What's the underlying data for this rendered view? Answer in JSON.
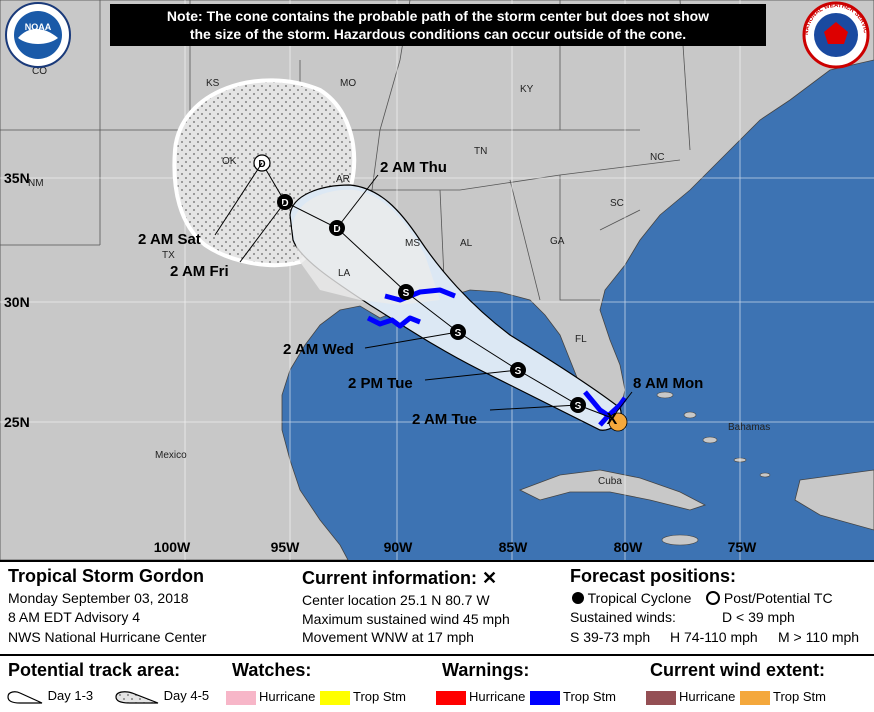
{
  "note": {
    "line1": "Note: The cone contains the probable path of the storm center but does not show",
    "line2": "the size of the storm. Hazardous conditions can occur outside of the cone."
  },
  "logos": {
    "left": "NOAA",
    "right": "NATIONAL WEATHER SERVICE"
  },
  "map_labels": {
    "lat": [
      "35N",
      "30N",
      "25N"
    ],
    "lon": [
      "100W",
      "95W",
      "90W",
      "85W",
      "80W",
      "75W"
    ],
    "states": [
      "CO",
      "KS",
      "MO",
      "KY",
      "TN",
      "OK",
      "AR",
      "NC",
      "SC",
      "AL",
      "GA",
      "MS",
      "LA",
      "TX",
      "FL",
      "NM"
    ],
    "countries": [
      "Mexico",
      "Cuba",
      "Bahamas"
    ]
  },
  "forecast_points": [
    {
      "time": "8 AM Mon",
      "symbol": "X"
    },
    {
      "time": "2 AM Tue",
      "symbol": "S"
    },
    {
      "time": "2 PM Tue",
      "symbol": "S"
    },
    {
      "time": "2 AM Wed",
      "symbol": "S"
    },
    {
      "time": "2 AM Thu",
      "symbol": "D"
    },
    {
      "time": "2 AM Fri",
      "symbol": "D"
    },
    {
      "time": "2 AM Sat",
      "symbol": "D"
    }
  ],
  "storm": {
    "name": "Tropical Storm Gordon",
    "date": "Monday September 03, 2018",
    "advisory": "8 AM EDT Advisory 4",
    "center": "NWS National Hurricane Center"
  },
  "current": {
    "title": "Current information:",
    "symbol": "✕",
    "location": "Center location 25.1 N 80.7 W",
    "wind": "Maximum sustained wind 45 mph",
    "movement": "Movement WNW at 17 mph"
  },
  "forecast": {
    "title": "Forecast positions:",
    "tc": "Tropical Cyclone",
    "ptc": "Post/Potential TC",
    "sustained": "Sustained winds:",
    "d": "D < 39 mph",
    "s": "S 39-73 mph",
    "h": "H 74-110 mph",
    "m": "M > 110 mph"
  },
  "legend": {
    "track_title": "Potential track area:",
    "day13": "Day 1-3",
    "day45": "Day 4-5",
    "watches_title": "Watches:",
    "warnings_title": "Warnings:",
    "wind_title": "Current wind extent:",
    "hurricane": "Hurricane",
    "tropstm": "Trop Stm",
    "colors": {
      "watch_hurricane": "#f7b6c8",
      "watch_tropstm": "#ffff00",
      "warn_hurricane": "#ff0000",
      "warn_tropstm": "#0000ff",
      "wind_hurricane": "#944f54",
      "wind_tropstm": "#f4a83c"
    }
  },
  "colors": {
    "ocean": "#3d73b3",
    "land": "#c8c8c8",
    "cone": "#dce8f4",
    "cone_45": "#e6e6e6"
  }
}
